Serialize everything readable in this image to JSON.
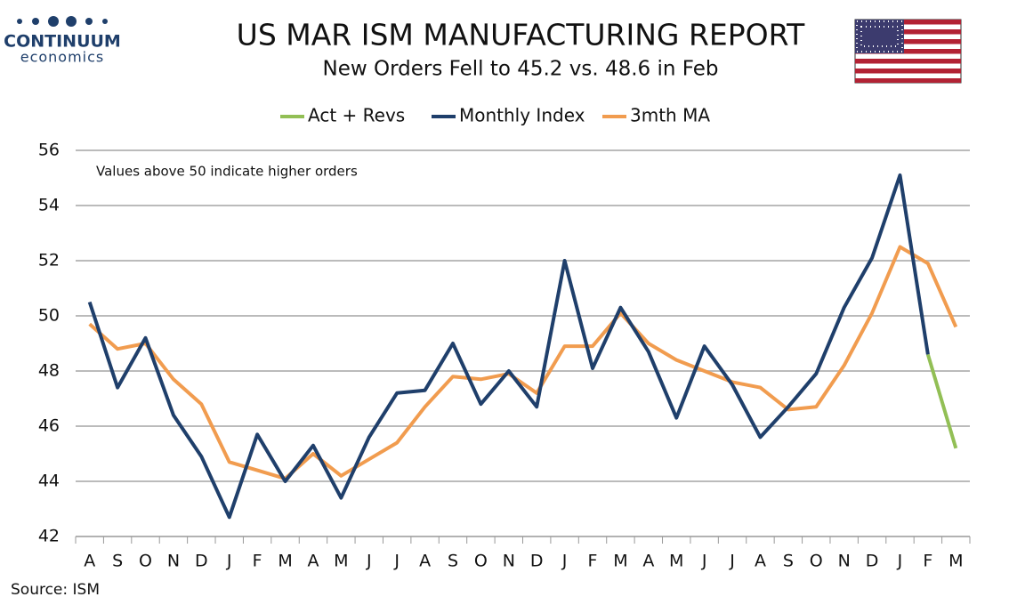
{
  "brand": {
    "name": "CONTINUUM",
    "tagline": "economics"
  },
  "chart_data": {
    "type": "line",
    "title": "US MAR ISM MANUFACTURING REPORT",
    "subtitle": "New Orders Fell to 45.2 vs. 48.6 in Feb",
    "annotation": "Values above 50 indicate higher orders",
    "source": "Source: ISM",
    "categories": [
      "A",
      "S",
      "O",
      "N",
      "D",
      "J",
      "F",
      "M",
      "A",
      "M",
      "J",
      "J",
      "A",
      "S",
      "O",
      "N",
      "D",
      "J",
      "F",
      "M",
      "A",
      "M",
      "J",
      "J",
      "A",
      "S",
      "O",
      "N",
      "D",
      "J",
      "F",
      "M"
    ],
    "series": [
      {
        "name": "Act + Revs",
        "color": "#92bf55",
        "values": [
          null,
          null,
          null,
          null,
          null,
          null,
          null,
          null,
          null,
          null,
          null,
          null,
          null,
          null,
          null,
          null,
          null,
          null,
          null,
          null,
          null,
          null,
          null,
          null,
          null,
          null,
          null,
          null,
          null,
          null,
          48.6,
          45.2
        ]
      },
      {
        "name": "Monthly Index",
        "color": "#1f3f6b",
        "values": [
          50.5,
          47.4,
          49.2,
          46.4,
          44.9,
          42.7,
          45.7,
          44.0,
          45.3,
          43.4,
          45.6,
          47.2,
          47.3,
          49.0,
          46.8,
          48.0,
          46.7,
          52.0,
          48.1,
          50.3,
          48.7,
          46.3,
          48.9,
          47.5,
          45.6,
          46.7,
          47.9,
          50.3,
          52.1,
          55.1,
          48.6,
          null
        ]
      },
      {
        "name": "3mth MA",
        "color": "#f19c4f",
        "values": [
          49.7,
          48.8,
          49.0,
          47.7,
          46.8,
          44.7,
          44.4,
          44.1,
          45.0,
          44.2,
          44.8,
          45.4,
          46.7,
          47.8,
          47.7,
          47.9,
          47.2,
          48.9,
          48.9,
          50.1,
          49.0,
          48.4,
          48.0,
          47.6,
          47.4,
          46.6,
          46.7,
          48.2,
          50.1,
          52.5,
          51.9,
          49.6
        ]
      }
    ],
    "ylim": [
      42,
      56
    ],
    "yticks": [
      42,
      44,
      46,
      48,
      50,
      52,
      54,
      56
    ],
    "grid": true,
    "legend": "top"
  }
}
